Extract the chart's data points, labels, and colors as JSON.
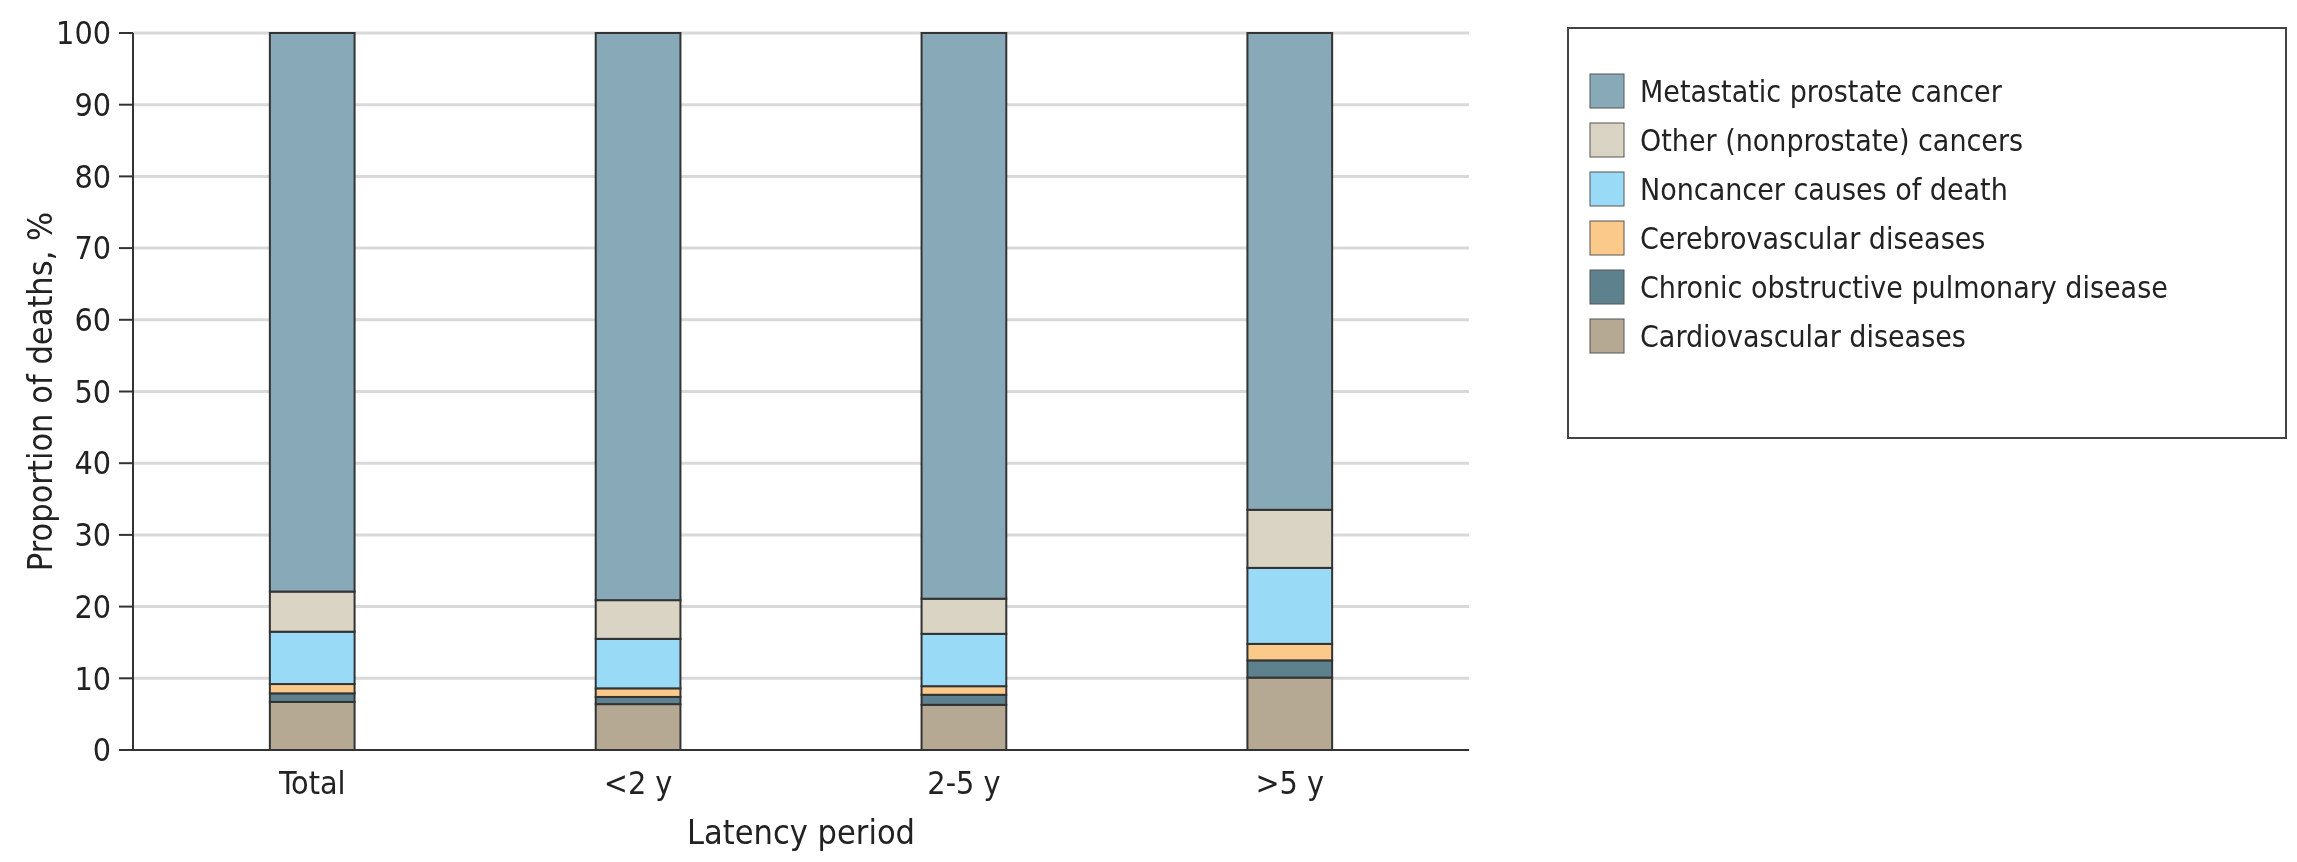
{
  "chart_data": {
    "type": "bar",
    "stacked": true,
    "xlabel": "Latency period",
    "ylabel": "Proportion of deaths, %",
    "categories": [
      "Total",
      "<2 y",
      "2-5 y",
      ">5 y"
    ],
    "series": [
      {
        "name": "Cardiovascular diseases",
        "color": "#b5a994",
        "values": [
          6.7,
          6.4,
          6.3,
          10.1
        ]
      },
      {
        "name": "Chronic obstructive pulmonary disease",
        "color": "#5e818e",
        "values": [
          1.2,
          1.0,
          1.4,
          2.4
        ]
      },
      {
        "name": "Cerebrovascular diseases",
        "color": "#fbc98a",
        "values": [
          1.3,
          1.2,
          1.2,
          2.3
        ]
      },
      {
        "name": "Noncancer causes of death",
        "color": "#99dbf6",
        "values": [
          7.3,
          6.9,
          7.3,
          10.6
        ]
      },
      {
        "name": "Other (nonprostate) cancers",
        "color": "#dad4c4",
        "values": [
          5.6,
          5.4,
          4.9,
          8.1
        ]
      },
      {
        "name": "Metastatic prostate cancer",
        "color": "#87a9b8",
        "values": [
          77.9,
          79.1,
          78.9,
          66.5
        ]
      }
    ],
    "ylim": [
      0,
      100
    ],
    "yticks": [
      0,
      10,
      20,
      30,
      40,
      50,
      60,
      70,
      80,
      90,
      100
    ],
    "grid": "y",
    "legend": "top right"
  }
}
